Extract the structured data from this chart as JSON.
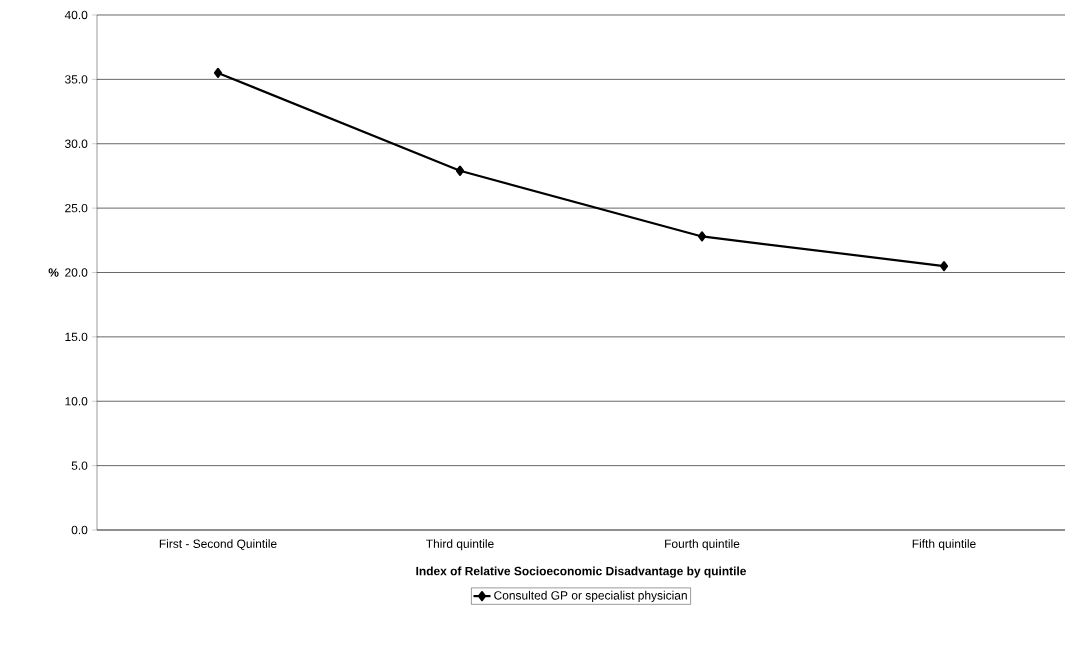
{
  "chart_data": {
    "type": "line",
    "xlabel": "Index of Relative Socioeconomic Disadvantage by quintile",
    "ylabel": "%",
    "categories": [
      "First - Second Quintile",
      "Third quintile",
      "Fourth quintile",
      "Fifth quintile"
    ],
    "series": [
      {
        "name": "Consulted GP or specialist physician",
        "color": "#000000",
        "values": [
          35.5,
          27.9,
          22.8,
          20.5
        ]
      }
    ],
    "ylim": [
      0,
      40
    ],
    "yticks": [
      {
        "value": 0,
        "label": "0.0"
      },
      {
        "value": 5,
        "label": "5.0"
      },
      {
        "value": 10,
        "label": "10.0"
      },
      {
        "value": 15,
        "label": "15.0"
      },
      {
        "value": 20,
        "label": "20.0"
      },
      {
        "value": 25,
        "label": "25.0"
      },
      {
        "value": 30,
        "label": "30.0"
      },
      {
        "value": 35,
        "label": "35.0"
      },
      {
        "value": 40,
        "label": "40.0"
      }
    ],
    "grid": "y",
    "legend": "bottom",
    "marker": "diamond",
    "line_style": "solid"
  }
}
